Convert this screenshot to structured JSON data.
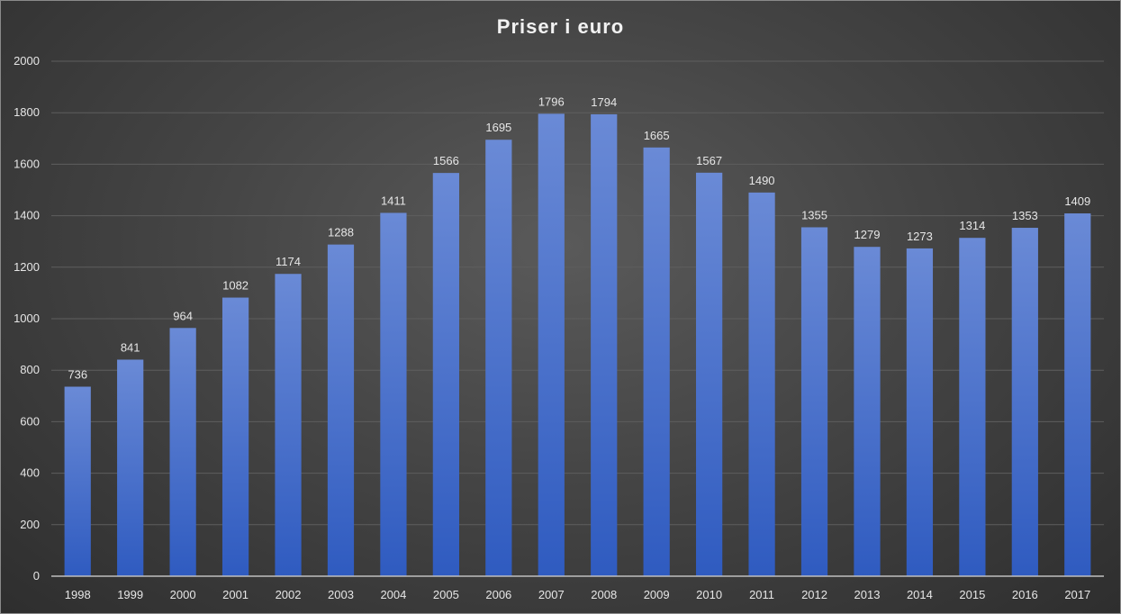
{
  "chart_data": {
    "type": "bar",
    "title": "Priser i euro",
    "xlabel": "",
    "ylabel": "",
    "categories": [
      "1998",
      "1999",
      "2000",
      "2001",
      "2002",
      "2003",
      "2004",
      "2005",
      "2006",
      "2007",
      "2008",
      "2009",
      "2010",
      "2011",
      "2012",
      "2013",
      "2014",
      "2015",
      "2016",
      "2017"
    ],
    "values": [
      736,
      841,
      964,
      1082,
      1174,
      1288,
      1411,
      1566,
      1695,
      1796,
      1794,
      1665,
      1567,
      1490,
      1355,
      1279,
      1273,
      1314,
      1353,
      1409
    ],
    "ylim": [
      0,
      2000
    ],
    "yticks": [
      0,
      200,
      400,
      600,
      800,
      1000,
      1200,
      1400,
      1600,
      1800,
      2000
    ],
    "grid": true,
    "data_labels": true,
    "legend": "none",
    "colors": {
      "bar_top": "#6a8ad6",
      "bar_bottom": "#2f5bc0",
      "grid": "#5e5e5e",
      "axis": "#bfbfbf",
      "text": "#e6e6e6"
    }
  }
}
